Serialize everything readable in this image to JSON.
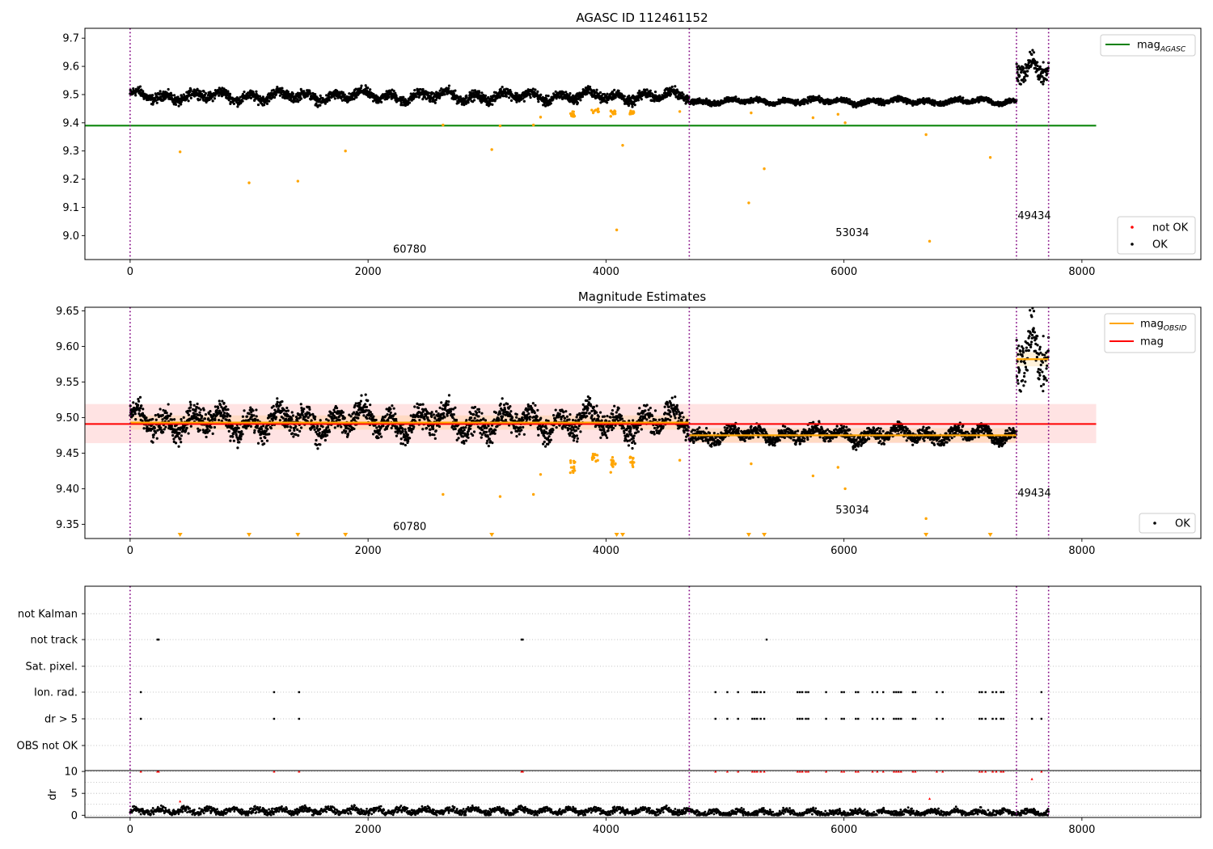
{
  "chart_data": [
    {
      "type": "scatter",
      "title": "AGASC ID 112461152",
      "xlim": [
        -380,
        9000
      ],
      "ylim": [
        8.915,
        9.735
      ],
      "x_ticks": [
        "0",
        "2000",
        "4000",
        "6000",
        "8000"
      ],
      "x_tick_values": [
        0,
        2000,
        4000,
        6000,
        8000
      ],
      "y_ticks": [
        "9.0",
        "9.1",
        "9.2",
        "9.3",
        "9.4",
        "9.5",
        "9.6",
        "9.7"
      ],
      "y_tick_values": [
        9.0,
        9.1,
        9.2,
        9.3,
        9.4,
        9.5,
        9.6,
        9.7
      ],
      "obsid_boundaries": [
        0,
        4700,
        7450,
        7720
      ],
      "obsid_labels": [
        {
          "text": "60780",
          "x": 2350,
          "y": 8.94
        },
        {
          "text": "53034",
          "x": 6070,
          "y": 8.998
        },
        {
          "text": "49434",
          "x": 7600,
          "y": 9.058
        }
      ],
      "mag_agasc": 9.39,
      "mag_agasc_xrange": [
        -380,
        8120
      ],
      "legend_lines": [
        {
          "label": "mag",
          "sub": "AGASC",
          "color": "#008000"
        }
      ],
      "legend_points": [
        {
          "label": "not OK",
          "color": "#ff0000"
        },
        {
          "label": "OK",
          "color": "#000000"
        }
      ],
      "segments": [
        {
          "x": [
            0,
            4700
          ],
          "mean": 9.494,
          "amp": 0.022
        },
        {
          "x": [
            4700,
            7450
          ],
          "mean": 9.476,
          "amp": 0.012
        },
        {
          "x": [
            7450,
            7720
          ],
          "mean": 9.595,
          "amp": 0.03
        }
      ],
      "outliers": [
        {
          "x": 420,
          "y": 9.297
        },
        {
          "x": 1000,
          "y": 9.187
        },
        {
          "x": 1410,
          "y": 9.193
        },
        {
          "x": 1810,
          "y": 9.3
        },
        {
          "x": 2630,
          "y": 9.392
        },
        {
          "x": 3040,
          "y": 9.305
        },
        {
          "x": 3110,
          "y": 9.389
        },
        {
          "x": 3390,
          "y": 9.392
        },
        {
          "x": 3450,
          "y": 9.42
        },
        {
          "x": 3720,
          "y": 9.425
        },
        {
          "x": 4040,
          "y": 9.423
        },
        {
          "x": 4090,
          "y": 9.02
        },
        {
          "x": 4140,
          "y": 9.32
        },
        {
          "x": 4620,
          "y": 9.44
        },
        {
          "x": 5200,
          "y": 9.116
        },
        {
          "x": 5220,
          "y": 9.435
        },
        {
          "x": 5330,
          "y": 9.237
        },
        {
          "x": 5740,
          "y": 9.418
        },
        {
          "x": 5950,
          "y": 9.43
        },
        {
          "x": 6010,
          "y": 9.4
        },
        {
          "x": 6690,
          "y": 9.358
        },
        {
          "x": 6720,
          "y": 8.98
        },
        {
          "x": 7230,
          "y": 9.277
        }
      ],
      "low_clusters": [
        {
          "x": [
            3700,
            3740
          ],
          "y": [
            9.42,
            9.44
          ]
        },
        {
          "x": [
            3880,
            3940
          ],
          "y": [
            9.435,
            9.45
          ]
        },
        {
          "x": [
            4040,
            4080
          ],
          "y": [
            9.43,
            9.445
          ]
        },
        {
          "x": [
            4200,
            4240
          ],
          "y": [
            9.43,
            9.445
          ]
        }
      ]
    },
    {
      "type": "scatter",
      "title": "Magnitude Estimates",
      "xlim": [
        -380,
        9000
      ],
      "ylim": [
        9.33,
        9.655
      ],
      "x_ticks": [
        "0",
        "2000",
        "4000",
        "6000",
        "8000"
      ],
      "x_tick_values": [
        0,
        2000,
        4000,
        6000,
        8000
      ],
      "y_ticks": [
        "9.35",
        "9.40",
        "9.45",
        "9.50",
        "9.55",
        "9.60",
        "9.65"
      ],
      "y_tick_values": [
        9.35,
        9.4,
        9.45,
        9.5,
        9.55,
        9.6,
        9.65
      ],
      "obsid_boundaries": [
        0,
        4700,
        7450,
        7720
      ],
      "obsid_labels": [
        {
          "text": "60780",
          "x": 2350,
          "y": 9.342
        },
        {
          "text": "53034",
          "x": 6070,
          "y": 9.365
        },
        {
          "text": "49434",
          "x": 7600,
          "y": 9.389
        }
      ],
      "mag": 9.491,
      "mag_band": [
        9.464,
        9.519
      ],
      "mag_xrange": [
        -380,
        8120
      ],
      "obsid_mags": [
        {
          "x": [
            0,
            4700
          ],
          "y": 9.493
        },
        {
          "x": [
            4700,
            7450
          ],
          "y": 9.475
        },
        {
          "x": [
            7450,
            7720
          ],
          "y": 9.582
        }
      ],
      "legend_lines": [
        {
          "label": "mag",
          "sub": "OBSID",
          "color": "#ffa500"
        },
        {
          "label": "mag",
          "sub": "",
          "color": "#ff0000"
        }
      ],
      "legend_points": [
        {
          "label": "OK",
          "color": "#000000"
        }
      ],
      "lower_limit_markers_x": [
        420,
        1000,
        1410,
        1810,
        3040,
        4090,
        4140,
        5200,
        5330,
        6690,
        7230
      ]
    },
    {
      "type": "scatter",
      "title": "",
      "xlim": [
        -380,
        9000
      ],
      "flag_labels": [
        "not Kalman",
        "not track",
        "Sat. pixel.",
        "Ion. rad.",
        "dr > 5",
        "OBS not OK"
      ],
      "flag_x": {
        "not track": [
          230,
          240,
          3290,
          3300,
          5350
        ],
        "Ion. rad.": [
          90,
          1210,
          1420,
          4920,
          5020,
          5110,
          5230,
          5250,
          5270,
          5300,
          5330,
          5610,
          5630,
          5650,
          5680,
          5700,
          5850,
          5980,
          6000,
          6100,
          6120,
          6240,
          6280,
          6330,
          6420,
          6440,
          6460,
          6480,
          6580,
          6600,
          6780,
          6830,
          7140,
          7160,
          7190,
          7250,
          7280,
          7320,
          7340,
          7660
        ],
        "dr > 5": [
          90,
          1210,
          1420,
          4920,
          5020,
          5110,
          5230,
          5250,
          5270,
          5300,
          5330,
          5610,
          5630,
          5650,
          5680,
          5700,
          5850,
          5980,
          6000,
          6100,
          6120,
          6240,
          6280,
          6330,
          6420,
          6440,
          6460,
          6480,
          6580,
          6600,
          6780,
          6830,
          7140,
          7160,
          7190,
          7250,
          7280,
          7320,
          7340,
          7580,
          7660
        ]
      },
      "dr_ylabel": "dr",
      "dr_ylim": [
        -0.5,
        10.2
      ],
      "dr_y_ticks": [
        "0",
        "5",
        "10"
      ],
      "dr_y_tick_values": [
        0,
        5,
        10
      ],
      "dr_mean": 1.0,
      "dr_high": [
        {
          "x": 90,
          "y": 10
        },
        {
          "x": 230,
          "y": 10
        },
        {
          "x": 240,
          "y": 10
        },
        {
          "x": 420,
          "y": 3.2
        },
        {
          "x": 1210,
          "y": 10
        },
        {
          "x": 1420,
          "y": 10
        },
        {
          "x": 3290,
          "y": 10
        },
        {
          "x": 3300,
          "y": 10
        },
        {
          "x": 4920,
          "y": 10
        },
        {
          "x": 5020,
          "y": 10
        },
        {
          "x": 5110,
          "y": 10
        },
        {
          "x": 5230,
          "y": 10
        },
        {
          "x": 5250,
          "y": 10
        },
        {
          "x": 5270,
          "y": 10
        },
        {
          "x": 5300,
          "y": 10
        },
        {
          "x": 5330,
          "y": 10
        },
        {
          "x": 5610,
          "y": 10
        },
        {
          "x": 5630,
          "y": 10
        },
        {
          "x": 5650,
          "y": 10
        },
        {
          "x": 5680,
          "y": 10
        },
        {
          "x": 5700,
          "y": 10
        },
        {
          "x": 5850,
          "y": 10
        },
        {
          "x": 5980,
          "y": 10
        },
        {
          "x": 6000,
          "y": 10
        },
        {
          "x": 6100,
          "y": 10
        },
        {
          "x": 6120,
          "y": 10
        },
        {
          "x": 6240,
          "y": 10
        },
        {
          "x": 6280,
          "y": 10
        },
        {
          "x": 6330,
          "y": 10
        },
        {
          "x": 6420,
          "y": 10
        },
        {
          "x": 6440,
          "y": 10
        },
        {
          "x": 6460,
          "y": 10
        },
        {
          "x": 6480,
          "y": 10
        },
        {
          "x": 6580,
          "y": 10
        },
        {
          "x": 6600,
          "y": 10
        },
        {
          "x": 6720,
          "y": 3.8
        },
        {
          "x": 6780,
          "y": 10
        },
        {
          "x": 6830,
          "y": 10
        },
        {
          "x": 7140,
          "y": 10
        },
        {
          "x": 7160,
          "y": 10
        },
        {
          "x": 7190,
          "y": 10
        },
        {
          "x": 7250,
          "y": 10
        },
        {
          "x": 7280,
          "y": 10
        },
        {
          "x": 7320,
          "y": 10
        },
        {
          "x": 7340,
          "y": 10
        },
        {
          "x": 7580,
          "y": 8.3
        },
        {
          "x": 7660,
          "y": 10
        }
      ]
    }
  ]
}
